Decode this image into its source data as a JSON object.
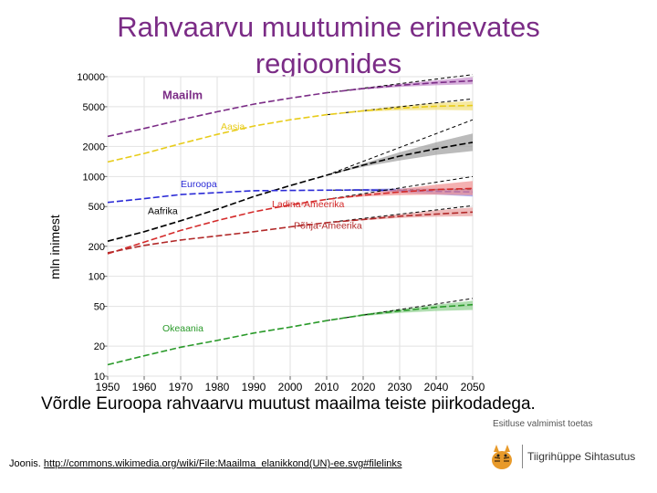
{
  "title": {
    "line1": "Rahvaarvu muutumine erinevates",
    "line2": "regioonides"
  },
  "caption": "Võrdle Euroopa rahvaarvu muutust maailma teiste piirkodadega.",
  "source": {
    "prefix": "Joonis. ",
    "link": "http://commons.wikimedia.org/wiki/File:Maailma_elanikkond(UN)-ee.svg#filelinks"
  },
  "support": {
    "text": "Esitluse valmimist toetas",
    "logo_text": "Tiigrihüppe Sihtasutus"
  },
  "colors": {
    "title": "#7b2c86"
  },
  "chart_data": {
    "type": "line",
    "ylabel": "mln inimest",
    "xlabel": "",
    "yscale": "log",
    "ylim": [
      10,
      10000
    ],
    "xlim": [
      1950,
      2050
    ],
    "x_ticks": [
      "1950",
      "1960",
      "1970",
      "1980",
      "1990",
      "2000",
      "2010",
      "2020",
      "2030",
      "2040",
      "2050"
    ],
    "y_ticks": [
      {
        "value": 10,
        "label": "10"
      },
      {
        "value": 20,
        "label": "20"
      },
      {
        "value": 50,
        "label": "50"
      },
      {
        "value": 100,
        "label": "100"
      },
      {
        "value": 200,
        "label": "200"
      },
      {
        "value": 500,
        "label": "500"
      },
      {
        "value": 1000,
        "label": "1000"
      },
      {
        "value": 2000,
        "label": "2000"
      },
      {
        "value": 5000,
        "label": "5000"
      },
      {
        "value": 10000,
        "label": "10000"
      }
    ],
    "series": [
      {
        "name": "Maailm",
        "color": "#7b2c86",
        "band": "#c58ccc",
        "label_year": 1965,
        "label_value": 6000,
        "x": [
          1950,
          1960,
          1970,
          1980,
          1990,
          2000,
          2010,
          2020,
          2030,
          2040,
          2050
        ],
        "values": [
          2520,
          3030,
          3700,
          4450,
          5300,
          6100,
          6900,
          7600,
          8200,
          8700,
          9100
        ],
        "band_start": 2010,
        "band_low": [
          6900,
          7450,
          7900,
          8200,
          8400
        ],
        "band_high": [
          6900,
          7750,
          8500,
          9200,
          9900
        ],
        "projection_x": [
          2010,
          2050
        ],
        "projection_values": [
          6900,
          10500
        ]
      },
      {
        "name": "Aasia",
        "color": "#e8cc1a",
        "band": "#f2e07a",
        "label_year": 1981,
        "label_value": 2950,
        "x": [
          1950,
          1960,
          1970,
          1980,
          1990,
          2000,
          2010,
          2020,
          2030,
          2040,
          2050
        ],
        "values": [
          1400,
          1700,
          2130,
          2640,
          3200,
          3700,
          4160,
          4550,
          4850,
          5050,
          5150
        ],
        "band_start": 2010,
        "band_low": [
          4160,
          4450,
          4600,
          4650,
          4600
        ],
        "band_high": [
          4160,
          4650,
          5100,
          5450,
          5700
        ],
        "projection_x": [
          2010,
          2050
        ],
        "projection_values": [
          4160,
          6000
        ]
      },
      {
        "name": "Aafrika",
        "color": "#000000",
        "band": "#9e9e9e",
        "label_year": 1961,
        "label_value": 420,
        "x": [
          1950,
          1960,
          1970,
          1980,
          1990,
          2000,
          2010,
          2020,
          2030,
          2040,
          2050
        ],
        "values": [
          225,
          280,
          360,
          470,
          630,
          810,
          1030,
          1300,
          1600,
          1900,
          2200
        ],
        "band_start": 2010,
        "band_low": [
          1030,
          1250,
          1450,
          1650,
          1800
        ],
        "band_high": [
          1030,
          1350,
          1750,
          2200,
          2700
        ],
        "projection_x": [
          2010,
          2050
        ],
        "projection_values": [
          1030,
          3700
        ]
      },
      {
        "name": "Euroopa",
        "color": "#2a2ad6",
        "band": "#8e8ee8",
        "label_year": 1970,
        "label_value": 780,
        "x": [
          1950,
          1960,
          1970,
          1980,
          1990,
          2000,
          2010,
          2020,
          2030,
          2040,
          2050
        ],
        "values": [
          550,
          600,
          660,
          690,
          720,
          725,
          730,
          735,
          725,
          710,
          700
        ],
        "band_start": 2010,
        "band_low": [
          730,
          715,
          690,
          660,
          630
        ],
        "band_high": [
          730,
          750,
          760,
          760,
          760
        ],
        "projection_x": [
          2010,
          2050
        ],
        "projection_values": [
          730,
          740
        ]
      },
      {
        "name": "Ladina-Ameerika",
        "color": "#d42a2a",
        "band": "#f09090",
        "label_year": 1995,
        "label_value": 490,
        "x": [
          1950,
          1960,
          1970,
          1980,
          1990,
          2000,
          2010,
          2020,
          2030,
          2040,
          2050
        ],
        "values": [
          168,
          220,
          288,
          362,
          443,
          520,
          590,
          650,
          700,
          740,
          760
        ],
        "band_start": 2010,
        "band_low": [
          590,
          630,
          650,
          660,
          650
        ],
        "band_high": [
          590,
          670,
          750,
          830,
          900
        ],
        "projection_x": [
          2010,
          2050
        ],
        "projection_values": [
          590,
          1000
        ]
      },
      {
        "name": "Põhja-Ameerika",
        "color": "#b22a2a",
        "band": "#e8a0a0",
        "label_year": 2001,
        "label_value": 300,
        "x": [
          1950,
          1960,
          1970,
          1980,
          1990,
          2000,
          2010,
          2020,
          2030,
          2040,
          2050
        ],
        "values": [
          172,
          204,
          231,
          254,
          280,
          313,
          345,
          370,
          400,
          420,
          440
        ],
        "band_start": 2010,
        "band_low": [
          345,
          365,
          385,
          395,
          400
        ],
        "band_high": [
          345,
          380,
          420,
          460,
          490
        ],
        "projection_x": [
          2010,
          2050
        ],
        "projection_values": [
          345,
          510
        ]
      },
      {
        "name": "Okeaania",
        "color": "#2a9a2a",
        "band": "#8fd08f",
        "label_year": 1965,
        "label_value": 28,
        "x": [
          1950,
          1960,
          1970,
          1980,
          1990,
          2000,
          2010,
          2020,
          2030,
          2040,
          2050
        ],
        "values": [
          13,
          16,
          19.5,
          22.8,
          27,
          31,
          36,
          41,
          45,
          49,
          52
        ],
        "band_start": 2010,
        "band_low": [
          36,
          40,
          43,
          45,
          46
        ],
        "band_high": [
          36,
          42,
          47,
          52,
          57
        ],
        "projection_x": [
          2010,
          2050
        ],
        "projection_values": [
          36,
          60
        ]
      }
    ]
  }
}
